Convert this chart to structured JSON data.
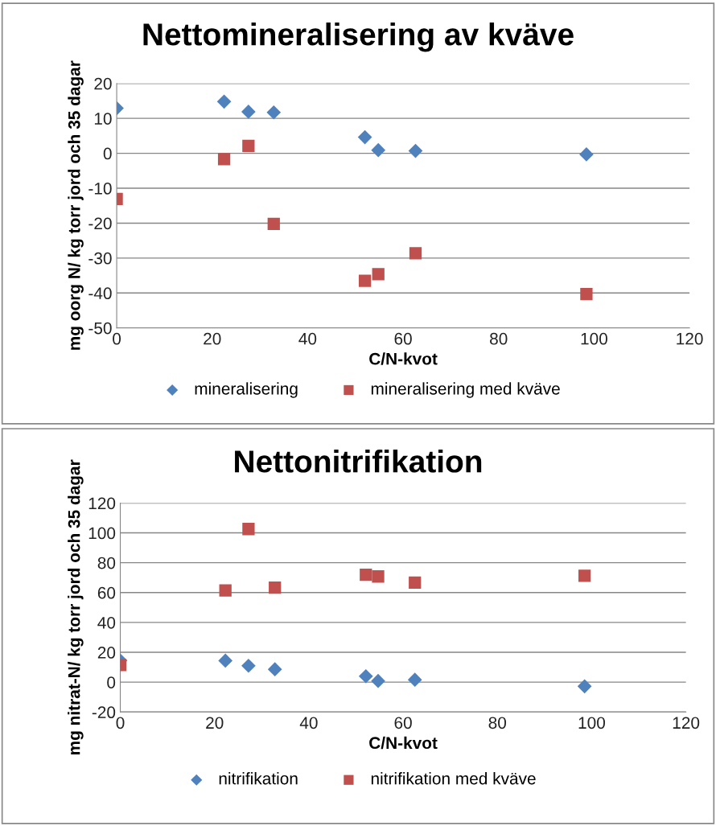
{
  "chart_data": [
    {
      "type": "scatter",
      "title": "Nettomineralisering av kväve",
      "xlabel": "C/N-kvot",
      "ylabel": "mg oorg N/ kg torr jord och 35 dagar",
      "xlim": [
        0,
        120
      ],
      "xticks": [
        0,
        20,
        40,
        60,
        80,
        100,
        120
      ],
      "ylim": [
        -50,
        20
      ],
      "yticks": [
        -50,
        -40,
        -30,
        -20,
        -10,
        0,
        10,
        20
      ],
      "grid": "y",
      "legend": "bottom",
      "series": [
        {
          "name": "mineralisering",
          "color": "#4f81bd",
          "marker": "diamond",
          "x": [
            0,
            22.5,
            27.6,
            32.9,
            52,
            54.8,
            62.6,
            98.4
          ],
          "values": [
            12.9,
            14.8,
            11.9,
            11.7,
            4.6,
            0.9,
            0.7,
            -0.3
          ]
        },
        {
          "name": "mineralisering med kväve",
          "color": "#c0504d",
          "marker": "square",
          "x": [
            0,
            22.5,
            27.6,
            32.9,
            52,
            54.8,
            62.6,
            98.4
          ],
          "values": [
            -13.1,
            -1.7,
            2.1,
            -20.2,
            -36.5,
            -34.6,
            -28.6,
            -40.3
          ]
        }
      ]
    },
    {
      "type": "scatter",
      "title": "Nettonitrifikation",
      "xlabel": "C/N-kvot",
      "ylabel": "mg nitrat-N/ kg torr jord och 35 dagar",
      "xlim": [
        0,
        120
      ],
      "xticks": [
        0,
        20,
        40,
        60,
        80,
        100,
        120
      ],
      "ylim": [
        -20,
        120
      ],
      "yticks": [
        -20,
        0,
        20,
        40,
        60,
        80,
        100,
        120
      ],
      "grid": "y",
      "legend": "bottom",
      "series": [
        {
          "name": "nitrifikation",
          "color": "#4f81bd",
          "marker": "diamond",
          "x": [
            0,
            22.3,
            27.2,
            32.8,
            52.1,
            54.7,
            62.5,
            98.5
          ],
          "values": [
            14.5,
            14.4,
            11,
            8.6,
            4,
            0.8,
            1.6,
            -2.8
          ]
        },
        {
          "name": "nitrifikation med kväve",
          "color": "#c0504d",
          "marker": "square",
          "x": [
            0,
            22.3,
            27.2,
            32.8,
            52.1,
            54.7,
            62.5,
            98.5
          ],
          "values": [
            11.5,
            61.5,
            102.6,
            63.3,
            71.9,
            70.8,
            66.7,
            71.3
          ]
        }
      ]
    }
  ]
}
